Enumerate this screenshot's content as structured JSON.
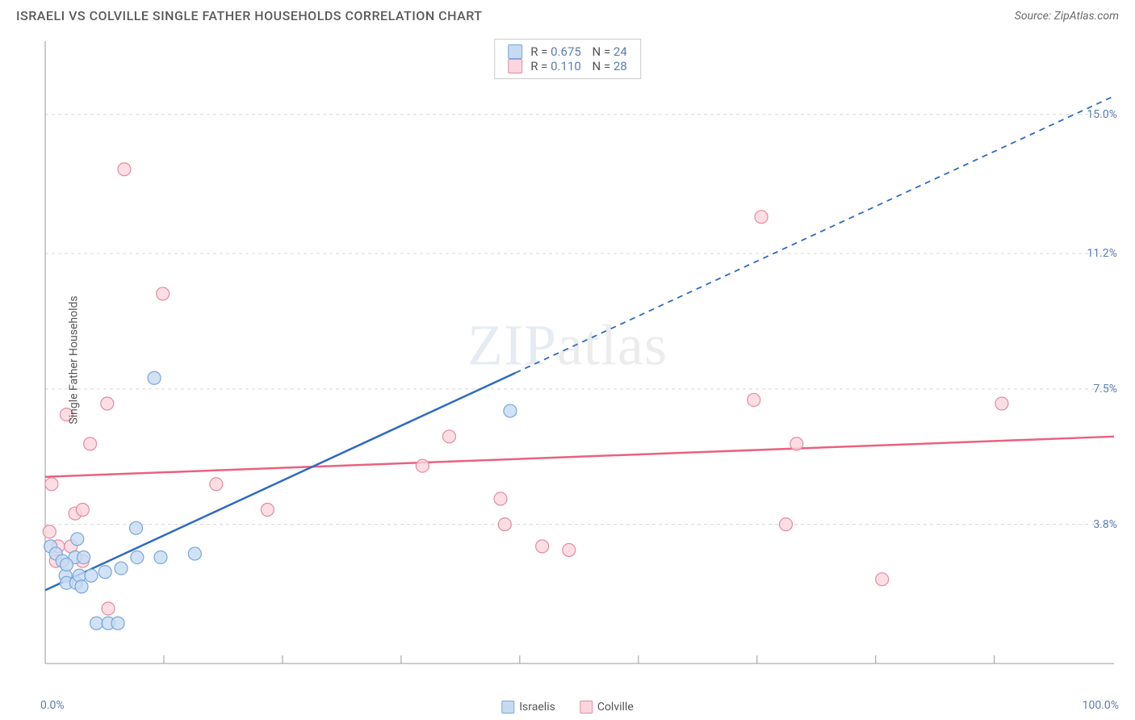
{
  "header": {
    "title": "ISRAELI VS COLVILLE SINGLE FATHER HOUSEHOLDS CORRELATION CHART",
    "source_label": "Source: ZipAtlas.com"
  },
  "watermark": {
    "left": "ZIP",
    "right": "atlas"
  },
  "chart": {
    "type": "scatter",
    "ylabel": "Single Father Households",
    "xlim": [
      0,
      100
    ],
    "ylim": [
      0,
      17
    ],
    "x_axis_labels": {
      "min": "0.0%",
      "max": "100.0%"
    },
    "y_ticks": [
      {
        "v": 3.8,
        "label": "3.8%"
      },
      {
        "v": 7.5,
        "label": "7.5%"
      },
      {
        "v": 11.2,
        "label": "11.2%"
      },
      {
        "v": 15.0,
        "label": "15.0%"
      }
    ],
    "x_minor_ticks": [
      11.1,
      22.2,
      33.3,
      44.4,
      55.5,
      66.6,
      77.7,
      88.8
    ],
    "grid_color": "#d8d8d8",
    "axis_color": "#999999",
    "background_color": "#ffffff",
    "point_radius": 8,
    "point_stroke_width": 1.2,
    "series": {
      "israelis": {
        "label": "Israelis",
        "fill": "#c5dbf2",
        "stroke": "#7aa6d8",
        "line_color": "#2f6bc0",
        "R": "0.675",
        "N": "24",
        "trend": {
          "x1": 0,
          "y1": 2.0,
          "x2": 100,
          "y2": 15.5,
          "solid_until_x": 44
        },
        "points": [
          [
            0.5,
            3.2
          ],
          [
            1.0,
            3.0
          ],
          [
            1.6,
            2.8
          ],
          [
            1.9,
            2.4
          ],
          [
            2.0,
            2.2
          ],
          [
            2.9,
            2.2
          ],
          [
            2.8,
            2.9
          ],
          [
            3.2,
            2.4
          ],
          [
            3.4,
            2.1
          ],
          [
            3.6,
            2.9
          ],
          [
            3.0,
            3.4
          ],
          [
            4.3,
            2.4
          ],
          [
            4.8,
            1.1
          ],
          [
            5.9,
            1.1
          ],
          [
            6.8,
            1.1
          ],
          [
            5.6,
            2.5
          ],
          [
            7.1,
            2.6
          ],
          [
            8.6,
            2.9
          ],
          [
            8.5,
            3.7
          ],
          [
            10.8,
            2.9
          ],
          [
            14.0,
            3.0
          ],
          [
            10.2,
            7.8
          ],
          [
            43.5,
            6.9
          ],
          [
            2.0,
            2.7
          ]
        ]
      },
      "colville": {
        "label": "Colville",
        "fill": "#fcd6de",
        "stroke": "#e48aa0",
        "line_color": "#e9627f",
        "R": "0.110",
        "N": "28",
        "trend": {
          "x1": 0,
          "y1": 5.1,
          "x2": 100,
          "y2": 6.2
        },
        "points": [
          [
            0.4,
            3.6
          ],
          [
            0.6,
            4.9
          ],
          [
            1.2,
            3.2
          ],
          [
            2.0,
            6.8
          ],
          [
            2.4,
            3.2
          ],
          [
            2.8,
            4.1
          ],
          [
            3.5,
            2.8
          ],
          [
            3.5,
            4.2
          ],
          [
            4.2,
            6.0
          ],
          [
            5.8,
            7.1
          ],
          [
            5.9,
            1.5
          ],
          [
            7.4,
            13.5
          ],
          [
            11.0,
            10.1
          ],
          [
            16.0,
            4.9
          ],
          [
            20.8,
            4.2
          ],
          [
            35.3,
            5.4
          ],
          [
            37.8,
            6.2
          ],
          [
            42.6,
            4.5
          ],
          [
            43.0,
            3.8
          ],
          [
            46.5,
            3.2
          ],
          [
            49.0,
            3.1
          ],
          [
            66.3,
            7.2
          ],
          [
            67.0,
            12.2
          ],
          [
            69.3,
            3.8
          ],
          [
            70.3,
            6.0
          ],
          [
            78.3,
            2.3
          ],
          [
            89.5,
            7.1
          ],
          [
            1.0,
            2.8
          ]
        ]
      }
    },
    "legend_inside": true,
    "legend_bottom": true
  }
}
